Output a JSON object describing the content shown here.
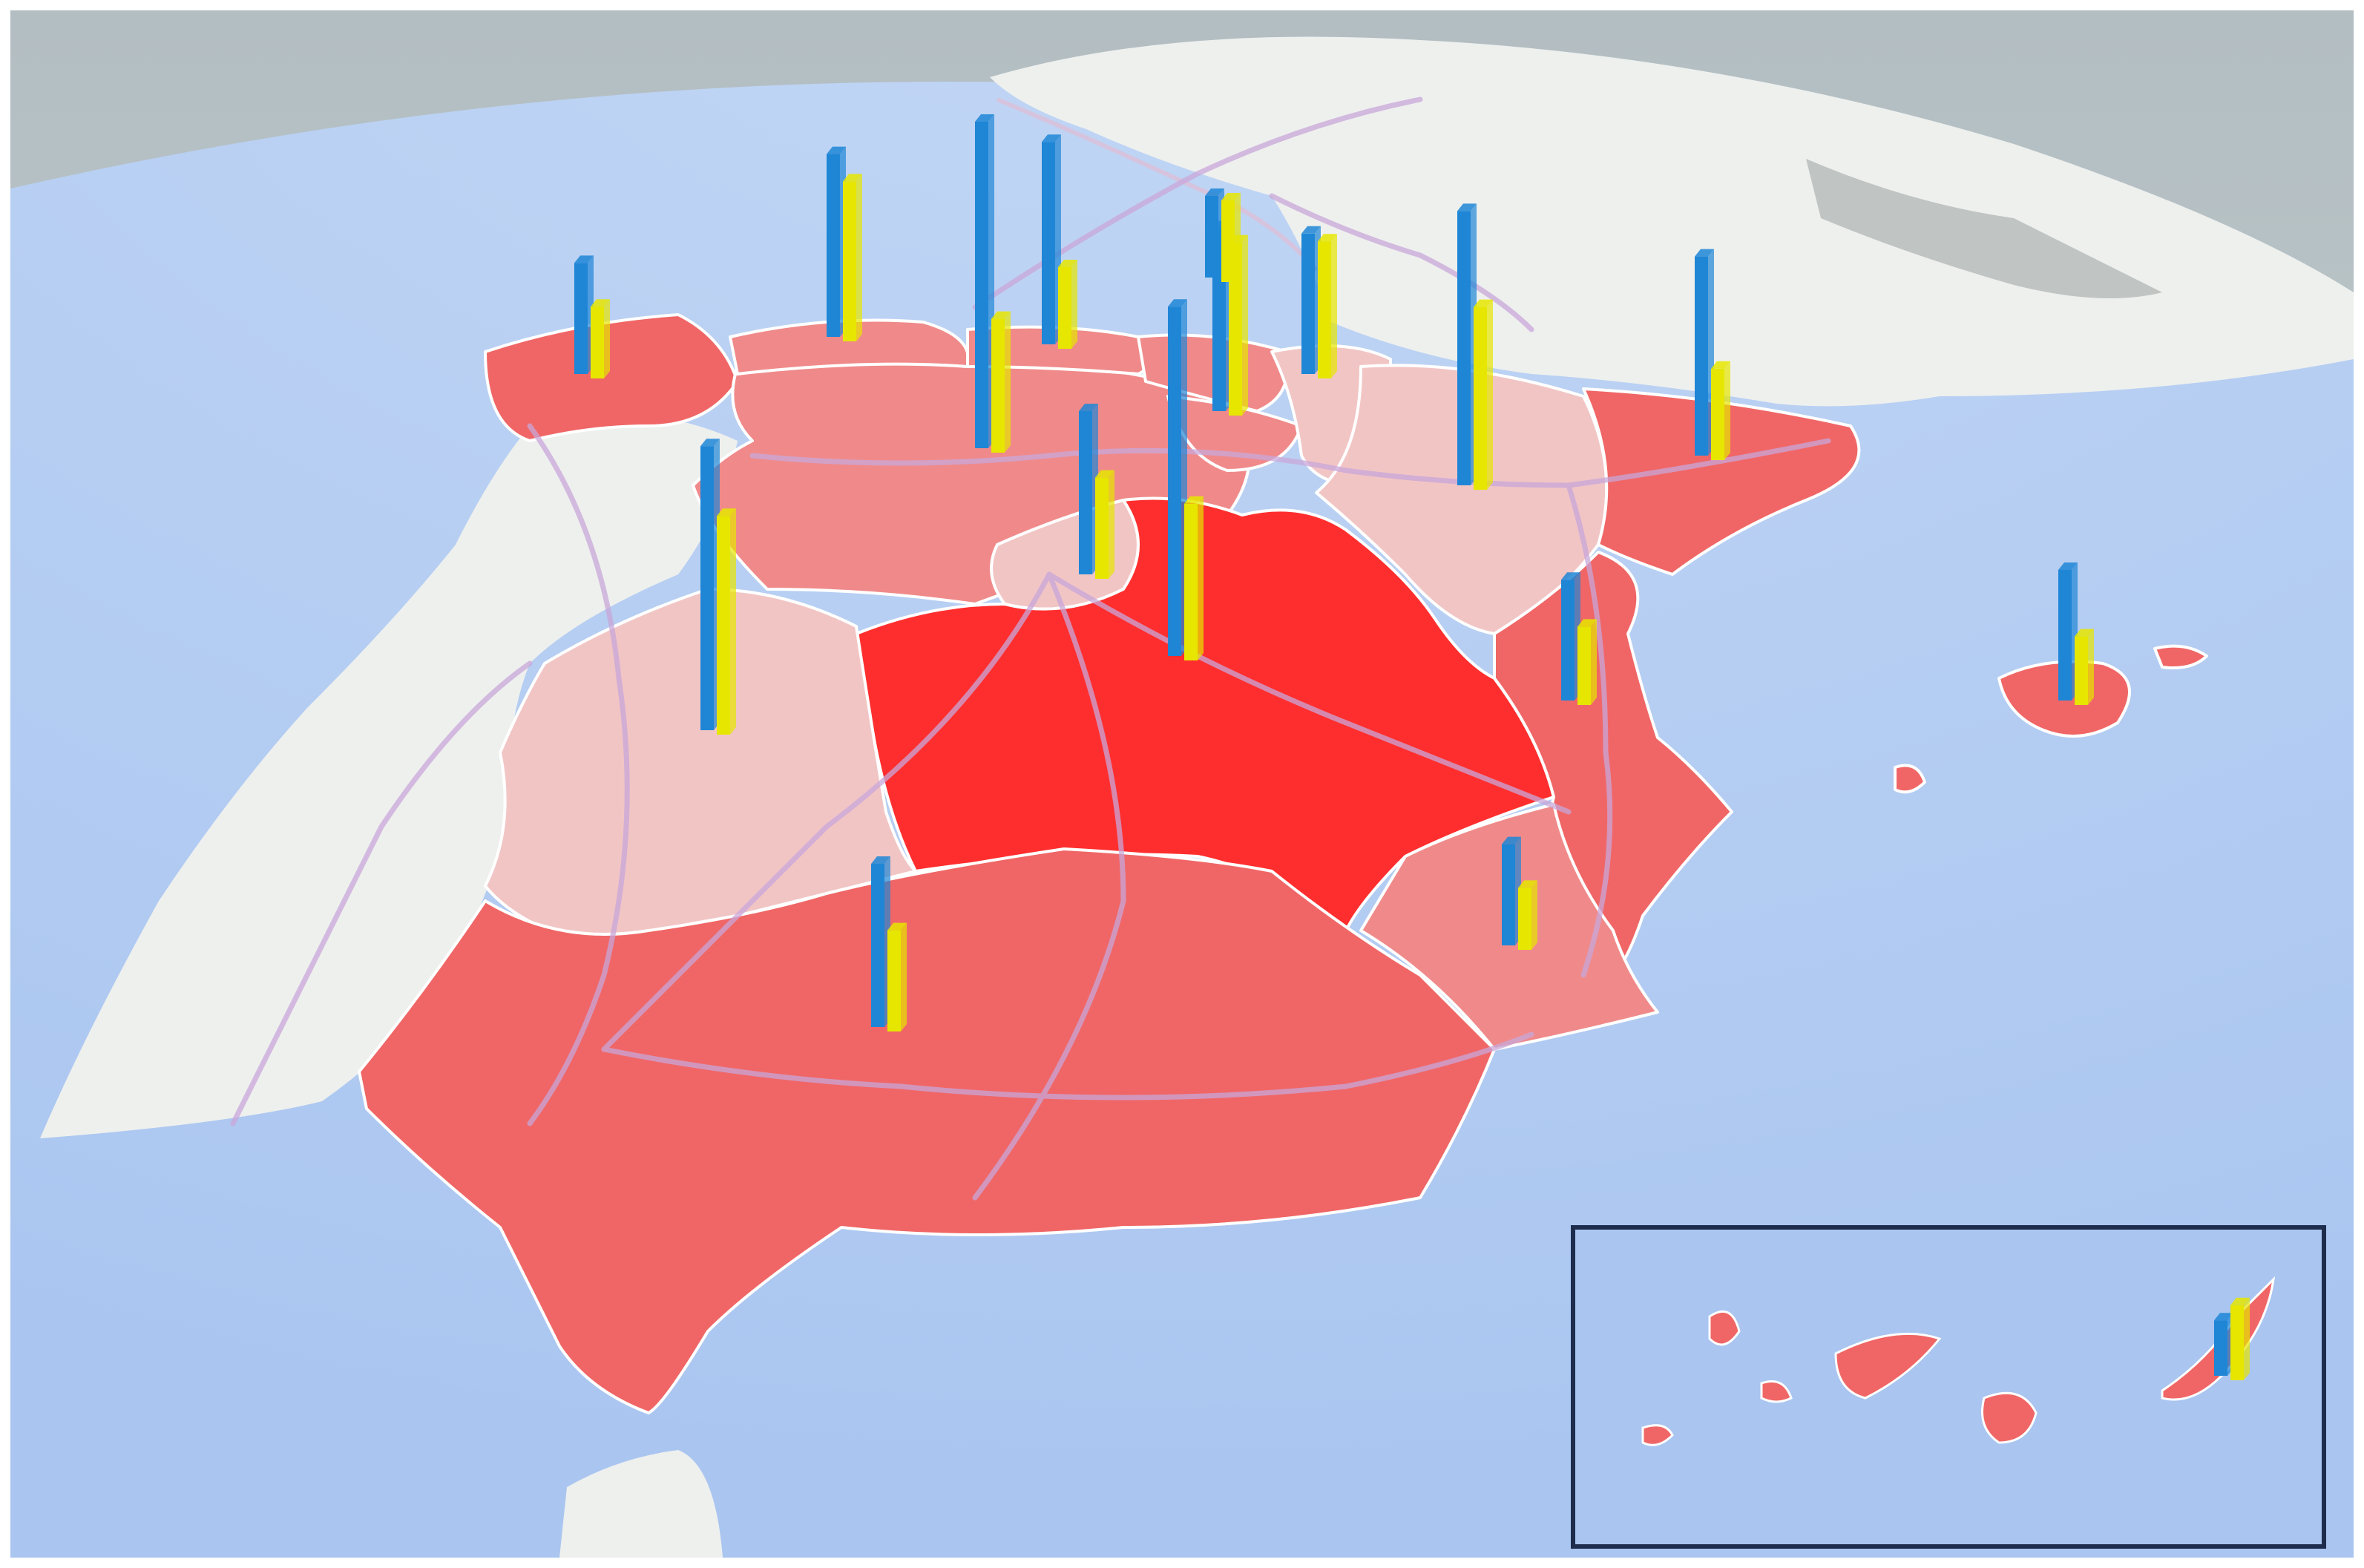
{
  "map": {
    "view": "3d-globe",
    "sea_color": "#a9c5f0",
    "sky_color": "#b9c4c8",
    "land_color": "#eef0ee",
    "road_color": "#c8a8d8",
    "border_color": "#ffffff",
    "series_colors": [
      "#1f86d6",
      "#e6e600"
    ],
    "shade_scale": {
      "light": "#f2c5c5",
      "mid": "#f08a8a",
      "strong": "#f06666",
      "darkest": "#ff2e2e"
    },
    "regions": [
      {
        "id": "galicia",
        "shade": "strong"
      },
      {
        "id": "asturias",
        "shade": "mid"
      },
      {
        "id": "cantabria",
        "shade": "mid"
      },
      {
        "id": "pais-vasco",
        "shade": "mid"
      },
      {
        "id": "navarra",
        "shade": "light"
      },
      {
        "id": "la-rioja",
        "shade": "mid"
      },
      {
        "id": "aragon",
        "shade": "light"
      },
      {
        "id": "cataluna",
        "shade": "strong"
      },
      {
        "id": "castilla-y-leon",
        "shade": "mid"
      },
      {
        "id": "madrid",
        "shade": "light"
      },
      {
        "id": "castilla-la-mancha",
        "shade": "darkest"
      },
      {
        "id": "extremadura",
        "shade": "light"
      },
      {
        "id": "comunidad-valenciana",
        "shade": "strong"
      },
      {
        "id": "murcia",
        "shade": "mid"
      },
      {
        "id": "andalucia",
        "shade": "strong"
      },
      {
        "id": "islas-baleares",
        "shade": "strong"
      },
      {
        "id": "islas-canarias",
        "shade": "strong"
      }
    ],
    "bar_groups": [
      {
        "id": "galicia",
        "blue": 0.34,
        "yellow": 0.22
      },
      {
        "id": "asturias",
        "blue": 0.56,
        "yellow": 0.49
      },
      {
        "id": "leon-north",
        "blue": 1.0,
        "yellow": 0.41
      },
      {
        "id": "cantabria",
        "blue": 0.62,
        "yellow": 0.25
      },
      {
        "id": "burgos",
        "blue": 0.5,
        "yellow": 0.31
      },
      {
        "id": "pais-vasco",
        "blue": 0.56,
        "yellow": 0.53
      },
      {
        "id": "navarra",
        "blue": 0.43,
        "yellow": 0.42
      },
      {
        "id": "aragon",
        "blue": 0.84,
        "yellow": 0.56
      },
      {
        "id": "cataluna",
        "blue": 0.61,
        "yellow": 0.28
      },
      {
        "id": "la-rioja",
        "blue": 0.25,
        "yellow": 0.25
      },
      {
        "id": "madrid",
        "blue": 1.07,
        "yellow": 0.48
      },
      {
        "id": "extremadura",
        "blue": 0.87,
        "yellow": 0.67
      },
      {
        "id": "comunidad-valenciana",
        "blue": 0.37,
        "yellow": 0.24
      },
      {
        "id": "murcia",
        "blue": 0.31,
        "yellow": 0.19
      },
      {
        "id": "andalucia",
        "blue": 0.5,
        "yellow": 0.31
      },
      {
        "id": "islas-baleares",
        "blue": 0.4,
        "yellow": 0.21
      },
      {
        "id": "islas-canarias",
        "blue": 0.17,
        "yellow": 0.23
      }
    ],
    "inset": {
      "id": "canarias-inset",
      "border_color": "#1e2d4d"
    }
  }
}
